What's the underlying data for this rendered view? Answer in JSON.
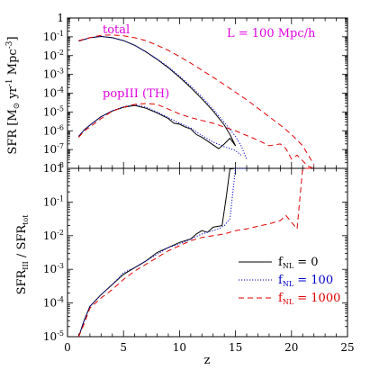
{
  "chart_data": [
    {
      "type": "line",
      "panel": "top",
      "ylabel_main": "SFR [M",
      "ylabel_sun": "⊙",
      "ylabel_units": " yr",
      "ylabel_exp1": "-1",
      "ylabel_units2": " Mpc",
      "ylabel_exp2": "-3",
      "ylabel_end": "]",
      "yscale": "log",
      "xlim": [
        0,
        25
      ],
      "ylim_exp": [
        -8,
        0
      ],
      "y_ticks": [
        {
          "exp": 0,
          "label": "1"
        },
        {
          "exp": -1,
          "base": "10",
          "sup": "-1"
        },
        {
          "exp": -2,
          "base": "10",
          "sup": "-2"
        },
        {
          "exp": -3,
          "base": "10",
          "sup": "-3"
        },
        {
          "exp": -4,
          "base": "10",
          "sup": "-4"
        },
        {
          "exp": -5,
          "base": "10",
          "sup": "-5"
        },
        {
          "exp": -6,
          "base": "10",
          "sup": "-6"
        },
        {
          "exp": -7,
          "base": "10",
          "sup": "-7"
        },
        {
          "exp": -8,
          "base": "10",
          "sup": "-8"
        }
      ],
      "annotations": [
        {
          "name": "total-annotation",
          "text": "total",
          "color": "#e000e0"
        },
        {
          "name": "box-size-annotation",
          "text": "L = 100 Mpc/h",
          "color": "#e000e0"
        },
        {
          "name": "popiii-annotation",
          "text": "popIII (TH)",
          "color": "#e000e0"
        }
      ],
      "series": [
        {
          "key": "f0_total",
          "color": "#000000",
          "dash": "",
          "points": [
            [
              1,
              -1.23
            ],
            [
              2,
              -1.05
            ],
            [
              3,
              -0.98
            ],
            [
              4,
              -1.05
            ],
            [
              5,
              -1.2
            ],
            [
              6,
              -1.45
            ],
            [
              7,
              -1.8
            ],
            [
              8,
              -2.2
            ],
            [
              9,
              -2.65
            ],
            [
              10,
              -3.15
            ],
            [
              11,
              -3.7
            ],
            [
              12,
              -4.3
            ],
            [
              13,
              -4.95
            ],
            [
              14,
              -5.7
            ],
            [
              14.5,
              -6.2
            ],
            [
              15,
              -6.8
            ]
          ]
        },
        {
          "key": "f100_total",
          "color": "#0000cc",
          "dash": "1.2,1.8",
          "points": [
            [
              1,
              -1.23
            ],
            [
              2,
              -1.05
            ],
            [
              3,
              -0.98
            ],
            [
              4,
              -1.05
            ],
            [
              5,
              -1.2
            ],
            [
              6,
              -1.45
            ],
            [
              7,
              -1.8
            ],
            [
              8,
              -2.18
            ],
            [
              9,
              -2.6
            ],
            [
              10,
              -3.1
            ],
            [
              11,
              -3.62
            ],
            [
              12,
              -4.2
            ],
            [
              13,
              -4.85
            ],
            [
              14,
              -5.55
            ],
            [
              15,
              -6.3
            ],
            [
              15.5,
              -6.8
            ],
            [
              16,
              -7.5
            ]
          ]
        },
        {
          "key": "f1000_total",
          "color": "#e00000",
          "dash": "6,4",
          "points": [
            [
              1,
              -1.2
            ],
            [
              2,
              -1.05
            ],
            [
              3,
              -0.92
            ],
            [
              4,
              -0.9
            ],
            [
              5,
              -0.95
            ],
            [
              6,
              -1.05
            ],
            [
              7,
              -1.2
            ],
            [
              8,
              -1.45
            ],
            [
              9,
              -1.72
            ],
            [
              10,
              -2.05
            ],
            [
              11,
              -2.4
            ],
            [
              12,
              -2.78
            ],
            [
              13,
              -3.15
            ],
            [
              14,
              -3.55
            ],
            [
              15,
              -3.95
            ],
            [
              16,
              -4.35
            ],
            [
              17,
              -4.8
            ],
            [
              18,
              -5.25
            ],
            [
              19,
              -5.7
            ],
            [
              20,
              -6.2
            ],
            [
              21,
              -6.8
            ],
            [
              21.5,
              -7.3
            ],
            [
              22,
              -7.8
            ]
          ]
        },
        {
          "key": "f0_pop3",
          "color": "#000000",
          "dash": "",
          "points": [
            [
              1,
              -6.3
            ],
            [
              1.5,
              -5.95
            ],
            [
              2,
              -5.7
            ],
            [
              3,
              -5.25
            ],
            [
              4,
              -4.95
            ],
            [
              5,
              -4.75
            ],
            [
              6,
              -4.65
            ],
            [
              7,
              -4.8
            ],
            [
              8,
              -5.05
            ],
            [
              8.5,
              -5.2
            ],
            [
              9,
              -5.35
            ],
            [
              9.5,
              -5.6
            ],
            [
              10,
              -5.65
            ],
            [
              10.5,
              -5.8
            ],
            [
              11,
              -5.9
            ],
            [
              11.5,
              -6.2
            ],
            [
              12,
              -6.35
            ],
            [
              12.5,
              -6.55
            ],
            [
              13,
              -6.75
            ],
            [
              13.5,
              -6.95
            ],
            [
              14,
              -6.7
            ],
            [
              14.5,
              -6.4
            ],
            [
              15,
              -6.8
            ]
          ]
        },
        {
          "key": "f100_pop3",
          "color": "#0000cc",
          "dash": "1.2,1.8",
          "points": [
            [
              1,
              -6.3
            ],
            [
              1.5,
              -5.95
            ],
            [
              2,
              -5.7
            ],
            [
              3,
              -5.25
            ],
            [
              4,
              -4.93
            ],
            [
              5,
              -4.72
            ],
            [
              6,
              -4.6
            ],
            [
              7,
              -4.75
            ],
            [
              8,
              -5.0
            ],
            [
              9,
              -5.3
            ],
            [
              10,
              -5.6
            ],
            [
              11,
              -5.85
            ],
            [
              12,
              -6.25
            ],
            [
              13,
              -6.6
            ],
            [
              14,
              -6.85
            ],
            [
              15,
              -7.05
            ],
            [
              15.5,
              -7.3
            ]
          ]
        },
        {
          "key": "f1000_pop3",
          "color": "#e00000",
          "dash": "6,4",
          "points": [
            [
              1,
              -6.35
            ],
            [
              1.5,
              -6.0
            ],
            [
              2,
              -5.8
            ],
            [
              3,
              -5.35
            ],
            [
              4,
              -4.95
            ],
            [
              5,
              -4.75
            ],
            [
              6,
              -4.6
            ],
            [
              7,
              -4.55
            ],
            [
              8,
              -4.6
            ],
            [
              9,
              -4.85
            ],
            [
              10,
              -5.1
            ],
            [
              11,
              -5.3
            ],
            [
              12,
              -5.45
            ],
            [
              13,
              -5.6
            ],
            [
              14,
              -5.8
            ],
            [
              15,
              -6.0
            ],
            [
              16,
              -6.25
            ],
            [
              17,
              -6.5
            ],
            [
              18,
              -6.8
            ],
            [
              19,
              -6.7
            ],
            [
              19.5,
              -6.95
            ],
            [
              20,
              -7.5
            ],
            [
              20.5,
              -7.3
            ],
            [
              21,
              -7.6
            ],
            [
              21.5,
              -7.9
            ],
            [
              22,
              -8.0
            ]
          ]
        }
      ]
    },
    {
      "type": "line",
      "panel": "bottom",
      "xlabel": "z",
      "ylabel_main": "SFR",
      "ylabel_sub1": "III",
      "ylabel_mid": " / SFR",
      "ylabel_sub2": "tot",
      "yscale": "log",
      "xlim": [
        0,
        25
      ],
      "ylim_exp": [
        -5,
        0
      ],
      "x_ticks": [
        {
          "value": 0,
          "label": "0"
        },
        {
          "value": 5,
          "label": "5"
        },
        {
          "value": 10,
          "label": "10"
        },
        {
          "value": 15,
          "label": "15"
        },
        {
          "value": 20,
          "label": "20"
        },
        {
          "value": 25,
          "label": "25"
        }
      ],
      "y_ticks": [
        {
          "exp": 0,
          "label": "1"
        },
        {
          "exp": -1,
          "base": "10",
          "sup": "-1"
        },
        {
          "exp": -2,
          "base": "10",
          "sup": "-2"
        },
        {
          "exp": -3,
          "base": "10",
          "sup": "-3"
        },
        {
          "exp": -4,
          "base": "10",
          "sup": "-4"
        },
        {
          "exp": -5,
          "base": "10",
          "sup": "-5"
        }
      ],
      "legend_placement": "bottom-right",
      "legend": [
        {
          "key": "f0",
          "symbol": "f",
          "sub": "NL",
          "value": " = 0",
          "color": "#000000",
          "dash": ""
        },
        {
          "key": "f100",
          "symbol": "f",
          "sub": "NL",
          "value": " = 100",
          "color": "#0000cc",
          "dash": "1.2,1.8"
        },
        {
          "key": "f1000",
          "symbol": "f",
          "sub": "NL",
          "value": " = 1000",
          "color": "#e00000",
          "dash": "6,4"
        }
      ],
      "series": [
        {
          "key": "f0_ratio",
          "color": "#000000",
          "dash": "",
          "points": [
            [
              1,
              -5.0
            ],
            [
              1.5,
              -4.5
            ],
            [
              2,
              -4.1
            ],
            [
              3,
              -3.75
            ],
            [
              4,
              -3.45
            ],
            [
              5,
              -3.15
            ],
            [
              6,
              -2.95
            ],
            [
              7,
              -2.75
            ],
            [
              8,
              -2.5
            ],
            [
              9,
              -2.35
            ],
            [
              10,
              -2.2
            ],
            [
              11,
              -2.1
            ],
            [
              11.5,
              -1.95
            ],
            [
              12,
              -1.85
            ],
            [
              12.5,
              -1.9
            ],
            [
              13,
              -1.75
            ],
            [
              13.5,
              -1.72
            ],
            [
              13.8,
              -1.7
            ],
            [
              14.2,
              -0.8
            ],
            [
              14.5,
              -0.02
            ],
            [
              15,
              0.0
            ]
          ]
        },
        {
          "key": "f100_ratio",
          "color": "#0000cc",
          "dash": "1.2,1.8",
          "points": [
            [
              1,
              -5.0
            ],
            [
              1.5,
              -4.5
            ],
            [
              2,
              -4.1
            ],
            [
              3,
              -3.75
            ],
            [
              4,
              -3.45
            ],
            [
              5,
              -3.1
            ],
            [
              6,
              -2.95
            ],
            [
              7,
              -2.75
            ],
            [
              8,
              -2.55
            ],
            [
              9,
              -2.35
            ],
            [
              10,
              -2.25
            ],
            [
              11,
              -2.1
            ],
            [
              12,
              -1.95
            ],
            [
              13,
              -1.85
            ],
            [
              13.5,
              -1.8
            ],
            [
              14,
              -1.7
            ],
            [
              14.5,
              -1.5
            ],
            [
              15,
              0.0
            ],
            [
              16,
              0.0
            ]
          ]
        },
        {
          "key": "f1000_ratio",
          "color": "#e00000",
          "dash": "6,4",
          "points": [
            [
              1,
              -5.0
            ],
            [
              1.5,
              -4.6
            ],
            [
              2,
              -4.15
            ],
            [
              3,
              -3.85
            ],
            [
              4,
              -3.6
            ],
            [
              5,
              -3.3
            ],
            [
              6,
              -3.05
            ],
            [
              7,
              -2.85
            ],
            [
              8,
              -2.65
            ],
            [
              9,
              -2.45
            ],
            [
              10,
              -2.3
            ],
            [
              11,
              -2.15
            ],
            [
              12,
              -2.05
            ],
            [
              13,
              -2.0
            ],
            [
              14,
              -1.95
            ],
            [
              15,
              -1.85
            ],
            [
              16,
              -1.8
            ],
            [
              17,
              -1.72
            ],
            [
              18,
              -1.65
            ],
            [
              19,
              -1.55
            ],
            [
              19.5,
              -1.4
            ],
            [
              20,
              -1.6
            ],
            [
              20.5,
              -1.8
            ],
            [
              21,
              0.0
            ],
            [
              22,
              0.0
            ]
          ]
        }
      ]
    }
  ]
}
